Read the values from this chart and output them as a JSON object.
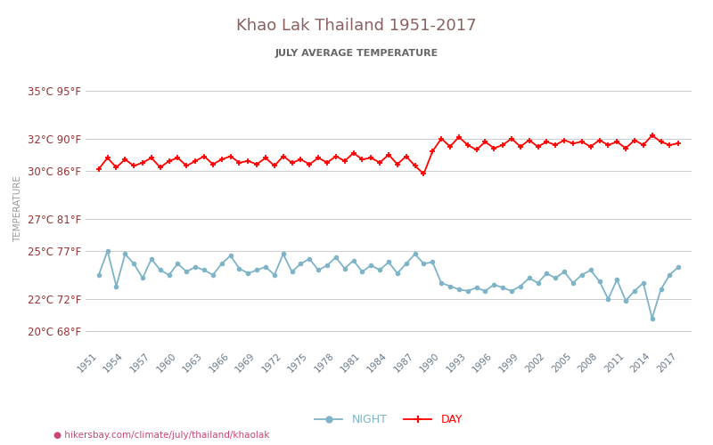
{
  "title": "Khao Lak Thailand 1951-2017",
  "subtitle": "JULY AVERAGE TEMPERATURE",
  "xlabel_url": "hikersbay.com/climate/july/thailand/khaolak",
  "ylabel": "TEMPERATURE",
  "legend_night": "NIGHT",
  "legend_day": "DAY",
  "years": [
    1951,
    1952,
    1953,
    1954,
    1955,
    1956,
    1957,
    1958,
    1959,
    1960,
    1961,
    1962,
    1963,
    1964,
    1965,
    1966,
    1967,
    1968,
    1969,
    1970,
    1971,
    1972,
    1973,
    1974,
    1975,
    1976,
    1977,
    1978,
    1979,
    1980,
    1981,
    1982,
    1983,
    1984,
    1985,
    1986,
    1987,
    1988,
    1989,
    1990,
    1991,
    1992,
    1993,
    1994,
    1995,
    1996,
    1997,
    1998,
    1999,
    2000,
    2001,
    2002,
    2003,
    2004,
    2005,
    2006,
    2007,
    2008,
    2009,
    2010,
    2011,
    2012,
    2013,
    2014,
    2015,
    2016,
    2017
  ],
  "day_temps": [
    30.1,
    30.8,
    30.2,
    30.7,
    30.3,
    30.5,
    30.8,
    30.2,
    30.6,
    30.8,
    30.3,
    30.6,
    30.9,
    30.4,
    30.7,
    30.9,
    30.5,
    30.6,
    30.4,
    30.8,
    30.3,
    30.9,
    30.5,
    30.7,
    30.4,
    30.8,
    30.5,
    30.9,
    30.6,
    31.1,
    30.7,
    30.8,
    30.5,
    31.0,
    30.4,
    30.9,
    30.3,
    29.8,
    31.2,
    32.0,
    31.5,
    32.1,
    31.6,
    31.3,
    31.8,
    31.4,
    31.6,
    32.0,
    31.5,
    31.9,
    31.5,
    31.8,
    31.6,
    31.9,
    31.7,
    31.8,
    31.5,
    31.9,
    31.6,
    31.8,
    31.4,
    31.9,
    31.6,
    32.2,
    31.8,
    31.6,
    31.7
  ],
  "night_temps": [
    23.5,
    25.0,
    22.8,
    24.8,
    24.2,
    23.3,
    24.5,
    23.8,
    23.5,
    24.2,
    23.7,
    24.0,
    23.8,
    23.5,
    24.2,
    24.7,
    23.9,
    23.6,
    23.8,
    24.0,
    23.5,
    24.8,
    23.7,
    24.2,
    24.5,
    23.8,
    24.1,
    24.6,
    23.9,
    24.4,
    23.7,
    24.1,
    23.8,
    24.3,
    23.6,
    24.2,
    24.8,
    24.2,
    24.3,
    23.0,
    22.8,
    22.6,
    22.5,
    22.7,
    22.5,
    22.9,
    22.7,
    22.5,
    22.8,
    23.3,
    23.0,
    23.6,
    23.3,
    23.7,
    23.0,
    23.5,
    23.8,
    23.1,
    22.0,
    23.2,
    21.9,
    22.5,
    23.0,
    20.8,
    22.6,
    23.5,
    24.0
  ],
  "yticks_c": [
    20,
    22,
    25,
    27,
    30,
    32,
    35
  ],
  "yticks_f": [
    68,
    72,
    77,
    81,
    86,
    90,
    95
  ],
  "xtick_years": [
    1951,
    1954,
    1957,
    1960,
    1963,
    1966,
    1969,
    1972,
    1975,
    1978,
    1981,
    1984,
    1987,
    1990,
    1993,
    1996,
    1999,
    2002,
    2005,
    2008,
    2011,
    2014,
    2017
  ],
  "day_color": "#ff0000",
  "night_color": "#7fb3c8",
  "grid_color": "#cccccc",
  "title_color": "#8b6060",
  "subtitle_color": "#666666",
  "ylabel_color": "#999999",
  "tick_color": "#993333",
  "xtick_color": "#667788",
  "bg_color": "#ffffff",
  "ylim_min": 19.0,
  "ylim_max": 36.2
}
